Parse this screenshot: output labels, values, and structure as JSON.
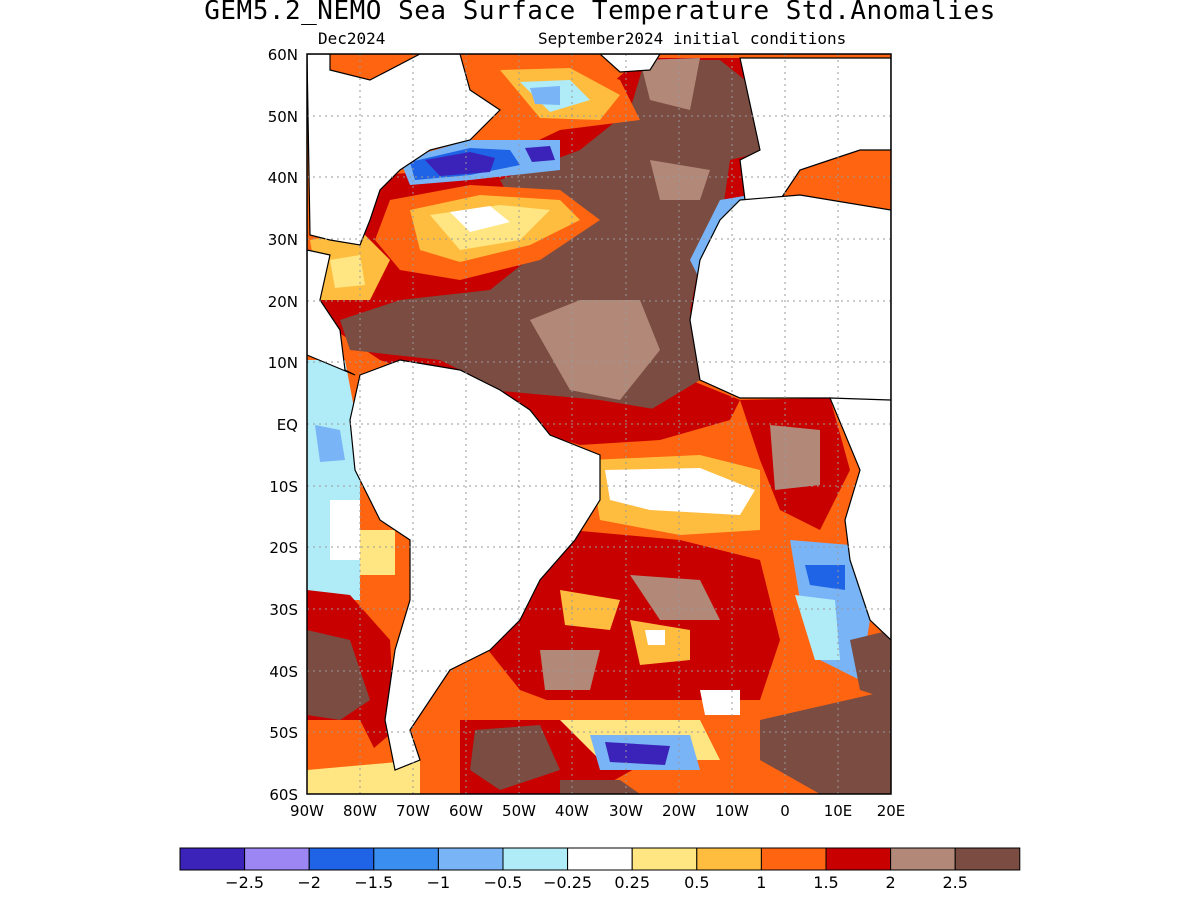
{
  "title": "GEM5.2_NEMO Sea Surface Temperature Std.Anomalies",
  "subtitle_left": "Dec2024",
  "subtitle_right": "September2024 initial conditions",
  "lat_labels": [
    "60N",
    "50N",
    "40N",
    "30N",
    "20N",
    "10N",
    "EQ",
    "10S",
    "20S",
    "30S",
    "40S",
    "50S",
    "60S"
  ],
  "lon_labels": [
    "90W",
    "80W",
    "70W",
    "60W",
    "50W",
    "40W",
    "30W",
    "20W",
    "10W",
    "0",
    "10E",
    "20E"
  ],
  "colorbar": {
    "colors": [
      "#3b22b8",
      "#9b86f4",
      "#1f63e6",
      "#3a8ef0",
      "#78b4f6",
      "#b0ecf8",
      "#ffffff",
      "#ffe682",
      "#ffbd40",
      "#ff6410",
      "#c80000",
      "#b28878",
      "#7a4c42"
    ],
    "labels": [
      "-2.5",
      "-2",
      "-1.5",
      "-1",
      "-0.5",
      "-0.25",
      "0.25",
      "0.5",
      "1",
      "1.5",
      "2",
      "2.5"
    ]
  },
  "colors": {
    "land": "#ffffff",
    "coast": "#000000",
    "grid": "#9a9a9a",
    "very_high": "#7a4c42",
    "high": "#b28878",
    "red": "#c80000",
    "orange": "#ff6410",
    "light_orange": "#ffbd40",
    "yellow": "#ffe682",
    "dark_blue": "#3b22b8",
    "blue": "#1f63e6",
    "light_blue": "#78b4f6",
    "cyan": "#b0ecf8"
  }
}
